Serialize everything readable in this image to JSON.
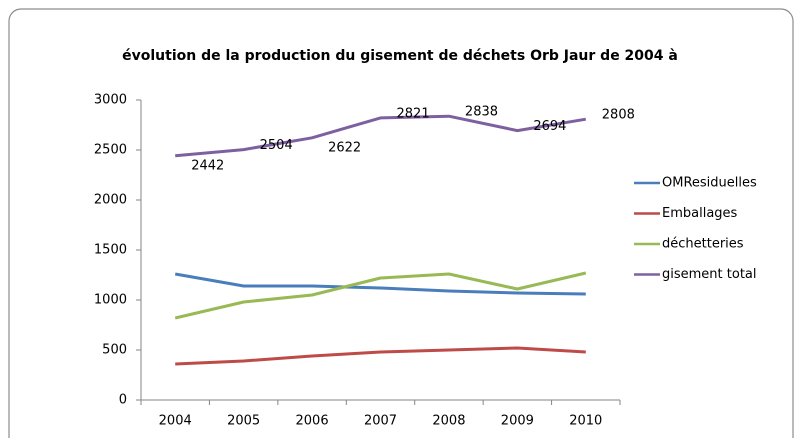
{
  "chart_data": {
    "type": "line",
    "title": "évolution de la production du gisement de déchets Orb Jaur de 2004 à",
    "categories": [
      "2004",
      "2005",
      "2006",
      "2007",
      "2008",
      "2009",
      "2010"
    ],
    "series": [
      {
        "name": "OMResiduelles",
        "color": "#4a7ebb",
        "values": [
          1260,
          1140,
          1140,
          1120,
          1090,
          1070,
          1060
        ]
      },
      {
        "name": "Emballages",
        "color": "#be4b48",
        "values": [
          360,
          390,
          440,
          480,
          500,
          520,
          480
        ]
      },
      {
        "name": "déchetteries",
        "color": "#98b954",
        "values": [
          820,
          980,
          1050,
          1220,
          1260,
          1110,
          1270
        ]
      },
      {
        "name": "gisement total",
        "color": "#7d60a0",
        "values": [
          2442,
          2504,
          2622,
          2821,
          2838,
          2694,
          2808
        ],
        "data_labels": true
      }
    ],
    "ylim": [
      0,
      3000
    ],
    "yticks": [
      0,
      500,
      1000,
      1500,
      2000,
      2500,
      3000
    ],
    "grid": false,
    "legend": "right"
  }
}
